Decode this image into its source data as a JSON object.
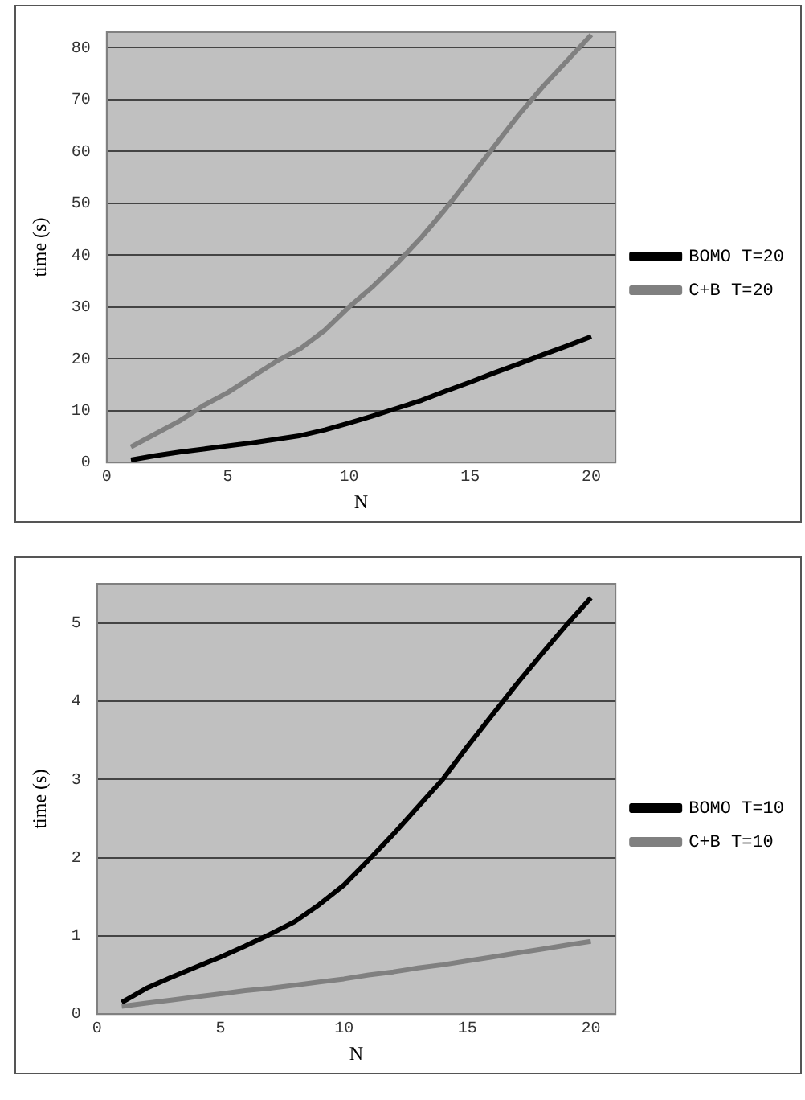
{
  "chart_data": [
    {
      "type": "line",
      "xlabel": "N",
      "ylabel": "time (s)",
      "xlim": [
        0,
        21
      ],
      "xticks": [
        0,
        5,
        10,
        15,
        20
      ],
      "ylim": [
        0,
        83
      ],
      "yticks": [
        0,
        10,
        20,
        30,
        40,
        50,
        60,
        70,
        80
      ],
      "grid": "y",
      "legend": "right",
      "marker": "none",
      "line_style": "solid",
      "x": [
        1,
        2,
        3,
        4,
        5,
        6,
        7,
        8,
        9,
        10,
        11,
        12,
        13,
        14,
        15,
        16,
        17,
        18,
        19,
        20
      ],
      "series": [
        {
          "name": "BOMO T=20",
          "color": "#000000",
          "values": [
            0.5,
            1.3,
            2,
            2.6,
            3.2,
            3.8,
            4.5,
            5.2,
            6.3,
            7.6,
            9,
            10.5,
            12,
            13.8,
            15.5,
            17.3,
            19,
            20.8,
            22.5,
            24.3
          ]
        },
        {
          "name": "C+B T=20",
          "color": "#808080",
          "values": [
            3,
            5.5,
            8,
            11,
            13.5,
            16.5,
            19.5,
            22,
            25.5,
            30,
            34,
            38.5,
            43.5,
            49,
            55,
            61,
            67,
            72.5,
            77.5,
            82.5
          ]
        }
      ]
    },
    {
      "type": "line",
      "xlabel": "N",
      "ylabel": "time (s)",
      "xlim": [
        0,
        21
      ],
      "xticks": [
        0,
        5,
        10,
        15,
        20
      ],
      "ylim": [
        0,
        5.5
      ],
      "yticks": [
        0,
        1,
        2,
        3,
        4,
        5
      ],
      "grid": "y",
      "legend": "right",
      "marker": "none",
      "line_style": "solid",
      "x": [
        1,
        2,
        3,
        4,
        5,
        6,
        7,
        8,
        9,
        10,
        11,
        12,
        13,
        14,
        15,
        16,
        17,
        18,
        19,
        20
      ],
      "series": [
        {
          "name": "BOMO T=10",
          "color": "#000000",
          "values": [
            0.15,
            0.33,
            0.47,
            0.6,
            0.73,
            0.87,
            1.02,
            1.18,
            1.4,
            1.65,
            1.97,
            2.3,
            2.65,
            3.0,
            3.42,
            3.82,
            4.22,
            4.6,
            4.97,
            5.32
          ]
        },
        {
          "name": "C+B T=10",
          "color": "#808080",
          "values": [
            0.1,
            0.14,
            0.18,
            0.22,
            0.26,
            0.3,
            0.33,
            0.37,
            0.41,
            0.45,
            0.5,
            0.54,
            0.59,
            0.63,
            0.68,
            0.73,
            0.78,
            0.83,
            0.88,
            0.93
          ]
        }
      ]
    }
  ]
}
